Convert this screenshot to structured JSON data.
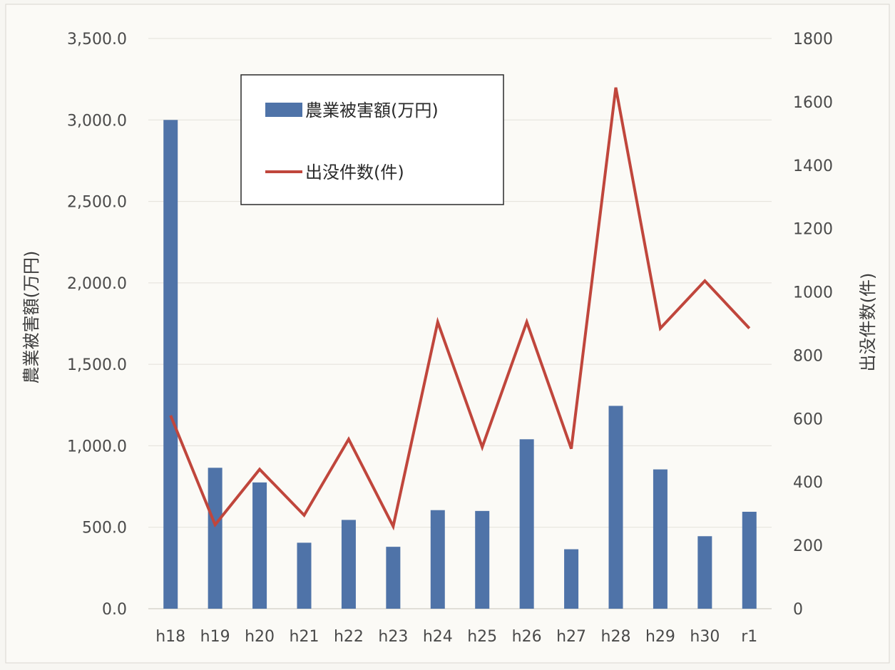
{
  "chart_data": {
    "type": "bar",
    "categories": [
      "h18",
      "h19",
      "h20",
      "h21",
      "h22",
      "h23",
      "h24",
      "h25",
      "h26",
      "h27",
      "h28",
      "h29",
      "h30",
      "r1"
    ],
    "series": [
      {
        "name": "農業被害額(万円)",
        "type": "bar",
        "axis": "left",
        "color": "#4f73a8",
        "values": [
          3000,
          865,
          775,
          405,
          545,
          380,
          605,
          600,
          1040,
          365,
          1245,
          855,
          445,
          595
        ]
      },
      {
        "name": "出没件数(件)",
        "type": "line",
        "axis": "right",
        "color": "#c0463c",
        "values": [
          610,
          265,
          440,
          295,
          535,
          260,
          905,
          510,
          905,
          505,
          1645,
          885,
          1035,
          885
        ]
      }
    ],
    "ylabel": "農業被害額(万円)",
    "y2label": "出没件数(件)",
    "ylim": [
      0,
      3500
    ],
    "y2lim": [
      0,
      1800
    ],
    "yticks": [
      "0.0",
      "500.0",
      "1,000.0",
      "1,500.0",
      "2,000.0",
      "2,500.0",
      "3,000.0",
      "3,500.0"
    ],
    "y2ticks": [
      "0",
      "200",
      "400",
      "600",
      "800",
      "1000",
      "1200",
      "1400",
      "1600",
      "1800"
    ],
    "legend_position": "top-left",
    "grid": true
  }
}
